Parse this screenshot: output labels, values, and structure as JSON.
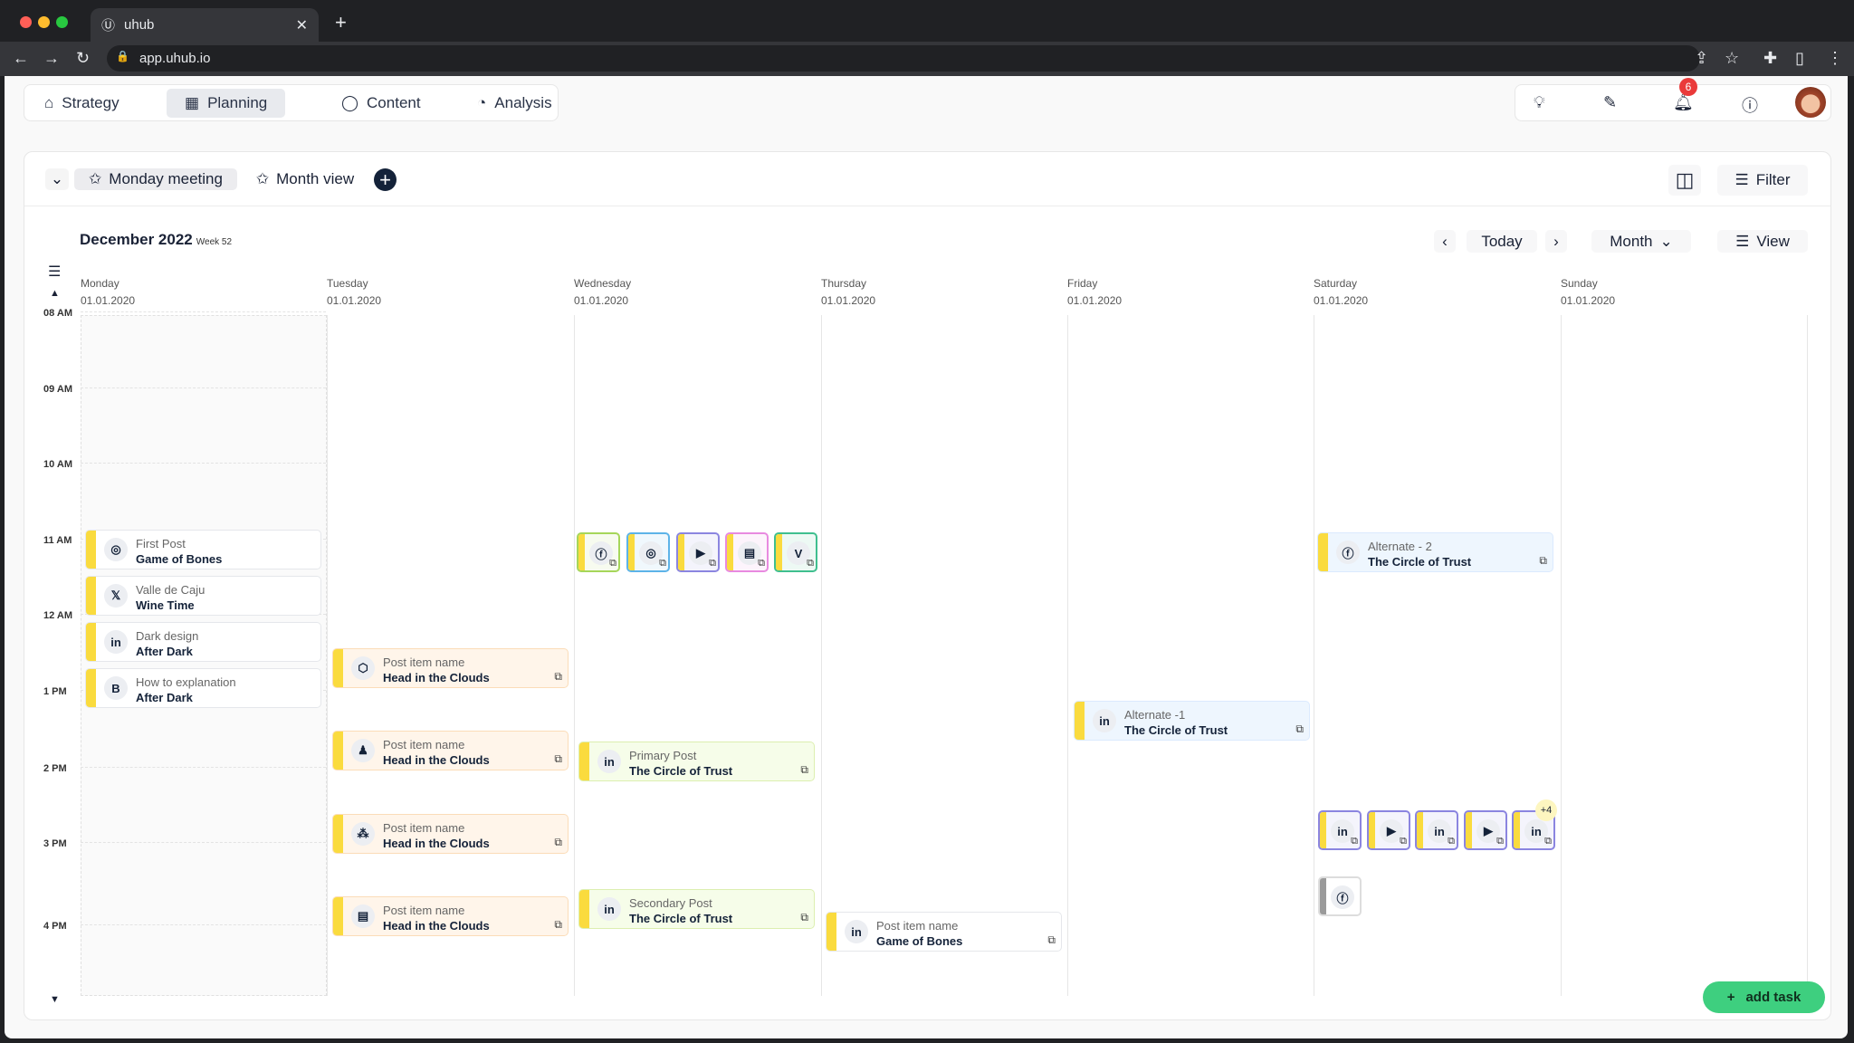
{
  "browser": {
    "tab_title": "uhub",
    "url": "app.uhub.io"
  },
  "nav": {
    "tabs": [
      {
        "label": "Strategy",
        "icon": "building-icon"
      },
      {
        "label": "Planning",
        "icon": "calendar-icon",
        "active": true
      },
      {
        "label": "Content",
        "icon": "chat-icon"
      },
      {
        "label": "Analysis",
        "icon": "pie-chart-icon"
      }
    ]
  },
  "header_icons": {
    "notifications_count": "6"
  },
  "toolbar": {
    "views": [
      "Monday meeting",
      "Month view"
    ],
    "filter_label": "Filter"
  },
  "calendar": {
    "month_title": "December 2022",
    "week_label": "Week 52",
    "today_label": "Today",
    "range_select": "Month",
    "view_label": "View",
    "days": [
      {
        "name": "Monday",
        "date": "01.01.2020"
      },
      {
        "name": "Tuesday",
        "date": "01.01.2020"
      },
      {
        "name": "Wednesday",
        "date": "01.01.2020"
      },
      {
        "name": "Thursday",
        "date": "01.01.2020"
      },
      {
        "name": "Friday",
        "date": "01.01.2020"
      },
      {
        "name": "Saturday",
        "date": "01.01.2020"
      },
      {
        "name": "Sunday",
        "date": "01.01.2020"
      }
    ],
    "times": [
      "08 AM",
      "09 AM",
      "10 AM",
      "11 AM",
      "12 AM",
      "1 PM",
      "2 PM",
      "3 PM",
      "4 PM"
    ],
    "events": [
      {
        "day": "Monday",
        "subtitle": "First Post",
        "title": "Game of Bones",
        "icon": "instagram"
      },
      {
        "day": "Monday",
        "subtitle": "Valle de Caju",
        "title": "Wine Time",
        "icon": "x"
      },
      {
        "day": "Monday",
        "subtitle": "Dark design",
        "title": "After Dark",
        "icon": "linkedin"
      },
      {
        "day": "Monday",
        "subtitle": "How to explanation",
        "title": "After Dark",
        "icon": "blogger"
      },
      {
        "day": "Tuesday",
        "subtitle": "Post item name",
        "title": "Head in the Clouds",
        "icon": "cube"
      },
      {
        "day": "Tuesday",
        "subtitle": "Post item name",
        "title": "Head in the Clouds",
        "icon": "reader"
      },
      {
        "day": "Tuesday",
        "subtitle": "Post item name",
        "title": "Head in the Clouds",
        "icon": "network"
      },
      {
        "day": "Tuesday",
        "subtitle": "Post item name",
        "title": "Head in the Clouds",
        "icon": "document"
      },
      {
        "day": "Wednesday",
        "subtitle": "Primary Post",
        "title": "The Circle of Trust",
        "icon": "linkedin"
      },
      {
        "day": "Wednesday",
        "subtitle": "Secondary Post",
        "title": "The Circle of Trust",
        "icon": "linkedin"
      },
      {
        "day": "Thursday",
        "subtitle": "Post item name",
        "title": "Game of Bones",
        "icon": "linkedin"
      },
      {
        "day": "Friday",
        "subtitle": "Alternate -1",
        "title": "The Circle of Trust",
        "icon": "linkedin"
      },
      {
        "day": "Saturday",
        "subtitle": "Alternate - 2",
        "title": "The Circle of Trust",
        "icon": "facebook"
      }
    ],
    "compact_events": [
      {
        "day": "Wednesday",
        "icon": "facebook",
        "color": "#a6d65a"
      },
      {
        "day": "Wednesday",
        "icon": "instagram",
        "color": "#5db3e8"
      },
      {
        "day": "Wednesday",
        "icon": "youtube",
        "color": "#8b85e0"
      },
      {
        "day": "Wednesday",
        "icon": "newspaper",
        "color": "#e88ae0"
      },
      {
        "day": "Wednesday",
        "icon": "vimeo",
        "color": "#3fbf8f"
      },
      {
        "day": "Saturday",
        "icon": "linkedin",
        "color": "#8b85e0"
      },
      {
        "day": "Saturday",
        "icon": "youtube",
        "color": "#8b85e0"
      },
      {
        "day": "Saturday",
        "icon": "linkedin",
        "color": "#8b85e0"
      },
      {
        "day": "Saturday",
        "icon": "youtube",
        "color": "#8b85e0"
      },
      {
        "day": "Saturday",
        "icon": "linkedin",
        "color": "#8b85e0"
      },
      {
        "day": "Saturday",
        "icon": "facebook",
        "color": "#dddddd"
      }
    ],
    "more_count": "+4",
    "add_task_label": "add task"
  },
  "colors": {
    "accent_bar": "#fadb3e",
    "primary": "#142239",
    "add_task": "#3ecf7f",
    "badge": "#ea3a3a"
  }
}
